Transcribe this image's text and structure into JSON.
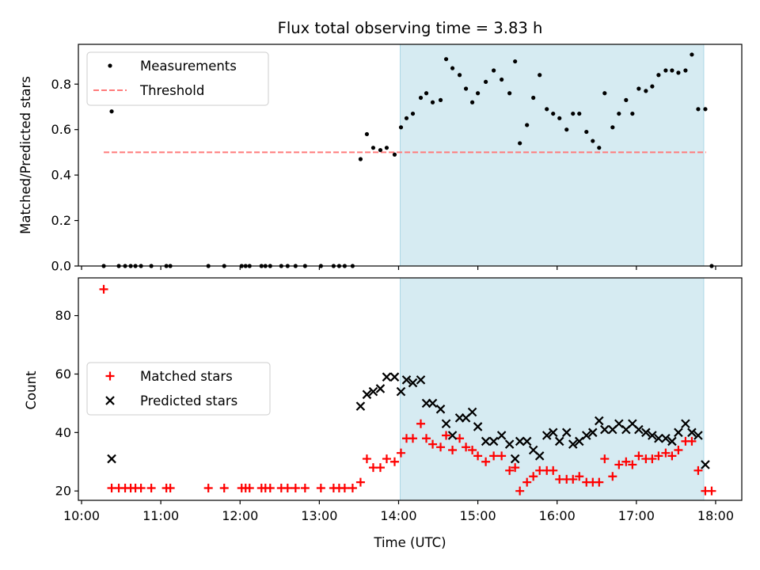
{
  "title": "Flux total observing time = 3.83 h",
  "chart_data": [
    {
      "type": "scatter",
      "panel": "top",
      "title": "Flux total observing time = 3.83 h",
      "xlabel": "",
      "ylabel": "Matched/Predicted stars",
      "x_unit": "hours UTC",
      "xlim": [
        9.96,
        18.33
      ],
      "ylim": [
        0.0,
        0.975
      ],
      "y_ticks": [
        "0.0",
        "0.2",
        "0.4",
        "0.6",
        "0.8"
      ],
      "y_tick_values": [
        0.0,
        0.2,
        0.4,
        0.6,
        0.8
      ],
      "x_tick_values": [
        10,
        11,
        12,
        13,
        14,
        15,
        16,
        17,
        18
      ],
      "shaded_region": {
        "x_start": 14.02,
        "x_end": 17.85,
        "color": "#add8e6"
      },
      "threshold": {
        "name": "Threshold",
        "y": 0.5,
        "x_start": 10.28,
        "x_end": 17.88,
        "color": "#ff7b7b"
      },
      "legend": {
        "position": "upper-left",
        "entries": [
          "Measurements",
          "Threshold"
        ]
      },
      "series": [
        {
          "name": "Measurements",
          "color": "#000000",
          "marker": "dot",
          "points": [
            [
              10.28,
              0.0
            ],
            [
              10.38,
              0.68
            ],
            [
              10.47,
              0.0
            ],
            [
              10.55,
              0.0
            ],
            [
              10.62,
              0.0
            ],
            [
              10.68,
              0.0
            ],
            [
              10.75,
              0.0
            ],
            [
              10.88,
              0.0
            ],
            [
              11.07,
              0.0
            ],
            [
              11.12,
              0.0
            ],
            [
              11.6,
              0.0
            ],
            [
              11.8,
              0.0
            ],
            [
              12.02,
              0.0
            ],
            [
              12.07,
              0.0
            ],
            [
              12.12,
              0.0
            ],
            [
              12.27,
              0.0
            ],
            [
              12.32,
              0.0
            ],
            [
              12.38,
              0.0
            ],
            [
              12.52,
              0.0
            ],
            [
              12.6,
              0.0
            ],
            [
              12.7,
              0.0
            ],
            [
              12.82,
              0.0
            ],
            [
              13.02,
              0.0
            ],
            [
              13.18,
              0.0
            ],
            [
              13.25,
              0.0
            ],
            [
              13.32,
              0.0
            ],
            [
              13.42,
              0.0
            ],
            [
              13.52,
              0.47
            ],
            [
              13.6,
              0.58
            ],
            [
              13.68,
              0.52
            ],
            [
              13.77,
              0.51
            ],
            [
              13.85,
              0.52
            ],
            [
              13.95,
              0.49
            ],
            [
              14.03,
              0.61
            ],
            [
              14.1,
              0.65
            ],
            [
              14.18,
              0.67
            ],
            [
              14.28,
              0.74
            ],
            [
              14.35,
              0.76
            ],
            [
              14.43,
              0.72
            ],
            [
              14.53,
              0.73
            ],
            [
              14.6,
              0.91
            ],
            [
              14.68,
              0.87
            ],
            [
              14.77,
              0.84
            ],
            [
              14.85,
              0.78
            ],
            [
              14.93,
              0.72
            ],
            [
              15.0,
              0.76
            ],
            [
              15.1,
              0.81
            ],
            [
              15.2,
              0.86
            ],
            [
              15.3,
              0.82
            ],
            [
              15.4,
              0.76
            ],
            [
              15.47,
              0.9
            ],
            [
              15.53,
              0.54
            ],
            [
              15.62,
              0.62
            ],
            [
              15.7,
              0.74
            ],
            [
              15.78,
              0.84
            ],
            [
              15.87,
              0.69
            ],
            [
              15.95,
              0.67
            ],
            [
              16.03,
              0.65
            ],
            [
              16.12,
              0.6
            ],
            [
              16.2,
              0.67
            ],
            [
              16.28,
              0.67
            ],
            [
              16.37,
              0.59
            ],
            [
              16.45,
              0.55
            ],
            [
              16.53,
              0.52
            ],
            [
              16.6,
              0.76
            ],
            [
              16.7,
              0.61
            ],
            [
              16.78,
              0.67
            ],
            [
              16.87,
              0.73
            ],
            [
              16.95,
              0.67
            ],
            [
              17.03,
              0.78
            ],
            [
              17.12,
              0.77
            ],
            [
              17.2,
              0.79
            ],
            [
              17.28,
              0.84
            ],
            [
              17.37,
              0.86
            ],
            [
              17.45,
              0.86
            ],
            [
              17.53,
              0.85
            ],
            [
              17.62,
              0.86
            ],
            [
              17.7,
              0.93
            ],
            [
              17.78,
              0.69
            ],
            [
              17.87,
              0.69
            ],
            [
              17.95,
              0.0
            ]
          ]
        }
      ]
    },
    {
      "type": "scatter",
      "panel": "bottom",
      "xlabel": "Time (UTC)",
      "ylabel": "Count",
      "x_unit": "hours UTC",
      "xlim": [
        9.96,
        18.33
      ],
      "ylim": [
        16.8,
        92.9
      ],
      "y_ticks": [
        "20",
        "40",
        "60",
        "80"
      ],
      "y_tick_values": [
        20,
        40,
        60,
        80
      ],
      "x_ticks": [
        "10:00",
        "11:00",
        "12:00",
        "13:00",
        "14:00",
        "15:00",
        "16:00",
        "17:00",
        "18:00"
      ],
      "x_tick_values": [
        10,
        11,
        12,
        13,
        14,
        15,
        16,
        17,
        18
      ],
      "shaded_region": {
        "x_start": 14.02,
        "x_end": 17.85,
        "color": "#add8e6"
      },
      "legend": {
        "position": "center-left",
        "entries": [
          "Matched stars",
          "Predicted stars"
        ]
      },
      "series": [
        {
          "name": "Matched stars",
          "color": "#ff0000",
          "marker": "plus",
          "points": [
            [
              10.28,
              89
            ],
            [
              10.38,
              21
            ],
            [
              10.47,
              21
            ],
            [
              10.55,
              21
            ],
            [
              10.62,
              21
            ],
            [
              10.68,
              21
            ],
            [
              10.75,
              21
            ],
            [
              10.88,
              21
            ],
            [
              11.07,
              21
            ],
            [
              11.12,
              21
            ],
            [
              11.6,
              21
            ],
            [
              11.8,
              21
            ],
            [
              12.02,
              21
            ],
            [
              12.07,
              21
            ],
            [
              12.12,
              21
            ],
            [
              12.27,
              21
            ],
            [
              12.32,
              21
            ],
            [
              12.38,
              21
            ],
            [
              12.52,
              21
            ],
            [
              12.6,
              21
            ],
            [
              12.7,
              21
            ],
            [
              12.82,
              21
            ],
            [
              13.02,
              21
            ],
            [
              13.18,
              21
            ],
            [
              13.25,
              21
            ],
            [
              13.32,
              21
            ],
            [
              13.42,
              21
            ],
            [
              13.52,
              23
            ],
            [
              13.6,
              31
            ],
            [
              13.68,
              28
            ],
            [
              13.77,
              28
            ],
            [
              13.85,
              31
            ],
            [
              13.95,
              30
            ],
            [
              14.03,
              33
            ],
            [
              14.1,
              38
            ],
            [
              14.18,
              38
            ],
            [
              14.28,
              43
            ],
            [
              14.35,
              38
            ],
            [
              14.43,
              36
            ],
            [
              14.53,
              35
            ],
            [
              14.6,
              39
            ],
            [
              14.68,
              34
            ],
            [
              14.77,
              38
            ],
            [
              14.85,
              35
            ],
            [
              14.93,
              34
            ],
            [
              15.0,
              32
            ],
            [
              15.1,
              30
            ],
            [
              15.2,
              32
            ],
            [
              15.3,
              32
            ],
            [
              15.4,
              27
            ],
            [
              15.47,
              28
            ],
            [
              15.53,
              20
            ],
            [
              15.62,
              23
            ],
            [
              15.7,
              25
            ],
            [
              15.78,
              27
            ],
            [
              15.87,
              27
            ],
            [
              15.95,
              27
            ],
            [
              16.03,
              24
            ],
            [
              16.12,
              24
            ],
            [
              16.2,
              24
            ],
            [
              16.28,
              25
            ],
            [
              16.37,
              23
            ],
            [
              16.45,
              23
            ],
            [
              16.53,
              23
            ],
            [
              16.6,
              31
            ],
            [
              16.7,
              25
            ],
            [
              16.78,
              29
            ],
            [
              16.87,
              30
            ],
            [
              16.95,
              29
            ],
            [
              17.03,
              32
            ],
            [
              17.12,
              31
            ],
            [
              17.2,
              31
            ],
            [
              17.28,
              32
            ],
            [
              17.37,
              33
            ],
            [
              17.45,
              32
            ],
            [
              17.53,
              34
            ],
            [
              17.62,
              37
            ],
            [
              17.7,
              37
            ],
            [
              17.78,
              27
            ],
            [
              17.87,
              20
            ],
            [
              17.95,
              20
            ]
          ]
        },
        {
          "name": "Predicted stars",
          "color": "#000000",
          "marker": "x",
          "points": [
            [
              10.38,
              31
            ],
            [
              13.52,
              49
            ],
            [
              13.6,
              53
            ],
            [
              13.68,
              54
            ],
            [
              13.77,
              55
            ],
            [
              13.85,
              59
            ],
            [
              13.95,
              59
            ],
            [
              14.03,
              54
            ],
            [
              14.1,
              58
            ],
            [
              14.18,
              57
            ],
            [
              14.28,
              58
            ],
            [
              14.35,
              50
            ],
            [
              14.43,
              50
            ],
            [
              14.53,
              48
            ],
            [
              14.6,
              43
            ],
            [
              14.68,
              39
            ],
            [
              14.77,
              45
            ],
            [
              14.85,
              45
            ],
            [
              14.93,
              47
            ],
            [
              15.0,
              42
            ],
            [
              15.1,
              37
            ],
            [
              15.2,
              37
            ],
            [
              15.3,
              39
            ],
            [
              15.4,
              36
            ],
            [
              15.47,
              31
            ],
            [
              15.53,
              37
            ],
            [
              15.62,
              37
            ],
            [
              15.7,
              34
            ],
            [
              15.78,
              32
            ],
            [
              15.87,
              39
            ],
            [
              15.95,
              40
            ],
            [
              16.03,
              37
            ],
            [
              16.12,
              40
            ],
            [
              16.2,
              36
            ],
            [
              16.28,
              37
            ],
            [
              16.37,
              39
            ],
            [
              16.45,
              40
            ],
            [
              16.53,
              44
            ],
            [
              16.6,
              41
            ],
            [
              16.7,
              41
            ],
            [
              16.78,
              43
            ],
            [
              16.87,
              41
            ],
            [
              16.95,
              43
            ],
            [
              17.03,
              41
            ],
            [
              17.12,
              40
            ],
            [
              17.2,
              39
            ],
            [
              17.28,
              38
            ],
            [
              17.37,
              38
            ],
            [
              17.45,
              37
            ],
            [
              17.53,
              40
            ],
            [
              17.62,
              43
            ],
            [
              17.7,
              40
            ],
            [
              17.78,
              39
            ],
            [
              17.87,
              29
            ]
          ]
        }
      ]
    }
  ]
}
